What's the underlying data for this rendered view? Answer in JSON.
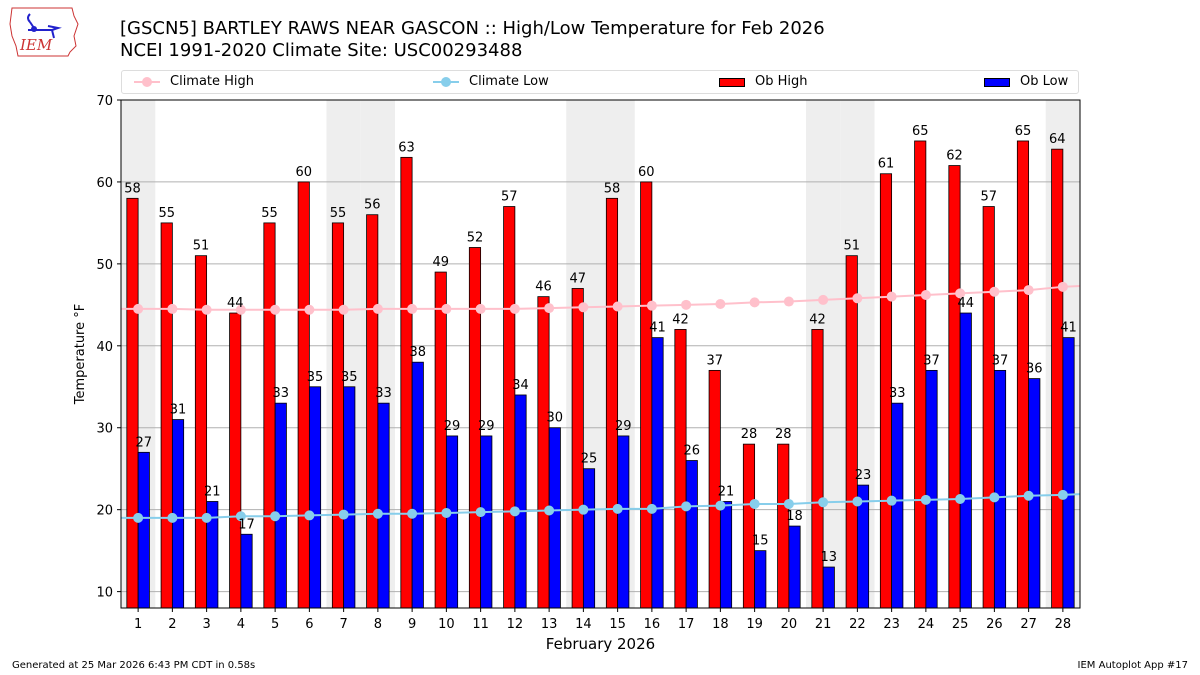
{
  "logo_text": "IEM",
  "title_line1": "[GSCN5] BARTLEY RAWS NEAR GASCON :: High/Low Temperature for Feb 2026",
  "title_line2": "NCEI 1991-2020 Climate Site: USC00293488",
  "footer_left": "Generated at 25 Mar 2026 6:43 PM CDT in 0.58s",
  "footer_right": "IEM Autoplot App #17",
  "colors": {
    "ob_high": "#ff0000",
    "ob_low": "#0000ff",
    "climate_high": "#ffc0cb",
    "climate_low": "#87ceeb",
    "weekend": "#eeeeee"
  },
  "chart_data": {
    "type": "bar",
    "title": "[GSCN5] BARTLEY RAWS NEAR GASCON :: High/Low Temperature for Feb 2026",
    "xlabel": "February 2026",
    "ylabel": "Temperature °F",
    "ylim": [
      8,
      70
    ],
    "yticks": [
      10,
      20,
      30,
      40,
      50,
      60,
      70
    ],
    "grid": true,
    "legend_position": "top",
    "categories": [
      "1",
      "2",
      "3",
      "4",
      "5",
      "6",
      "7",
      "8",
      "9",
      "10",
      "11",
      "12",
      "13",
      "14",
      "15",
      "16",
      "17",
      "18",
      "19",
      "20",
      "21",
      "22",
      "23",
      "24",
      "25",
      "26",
      "27",
      "28"
    ],
    "weekend_days": [
      1,
      7,
      8,
      14,
      15,
      21,
      22,
      28
    ],
    "series": [
      {
        "name": "Climate High",
        "type": "line",
        "values": [
          44.5,
          44.5,
          44.4,
          44.4,
          44.4,
          44.4,
          44.4,
          44.5,
          44.5,
          44.5,
          44.5,
          44.5,
          44.6,
          44.7,
          44.8,
          44.9,
          45.0,
          45.1,
          45.3,
          45.4,
          45.6,
          45.8,
          46.0,
          46.2,
          46.4,
          46.6,
          46.8,
          47.2
        ]
      },
      {
        "name": "Climate Low",
        "type": "line",
        "values": [
          19.0,
          19.0,
          19.0,
          19.2,
          19.2,
          19.3,
          19.4,
          19.5,
          19.5,
          19.6,
          19.7,
          19.8,
          19.9,
          20.0,
          20.1,
          20.1,
          20.4,
          20.5,
          20.7,
          20.7,
          20.9,
          21.0,
          21.1,
          21.2,
          21.3,
          21.5,
          21.7,
          21.8
        ]
      },
      {
        "name": "Ob High",
        "type": "bar",
        "values": [
          58,
          55,
          51,
          44,
          55,
          60,
          55,
          56,
          63,
          49,
          52,
          57,
          46,
          47,
          58,
          60,
          42,
          37,
          28,
          28,
          42,
          51,
          61,
          65,
          62,
          57,
          65,
          64
        ]
      },
      {
        "name": "Ob Low",
        "type": "bar",
        "values": [
          27,
          31,
          21,
          17,
          33,
          35,
          35,
          33,
          38,
          29,
          29,
          34,
          30,
          25,
          29,
          41,
          26,
          21,
          15,
          18,
          13,
          23,
          33,
          37,
          44,
          37,
          36,
          41
        ]
      }
    ]
  }
}
